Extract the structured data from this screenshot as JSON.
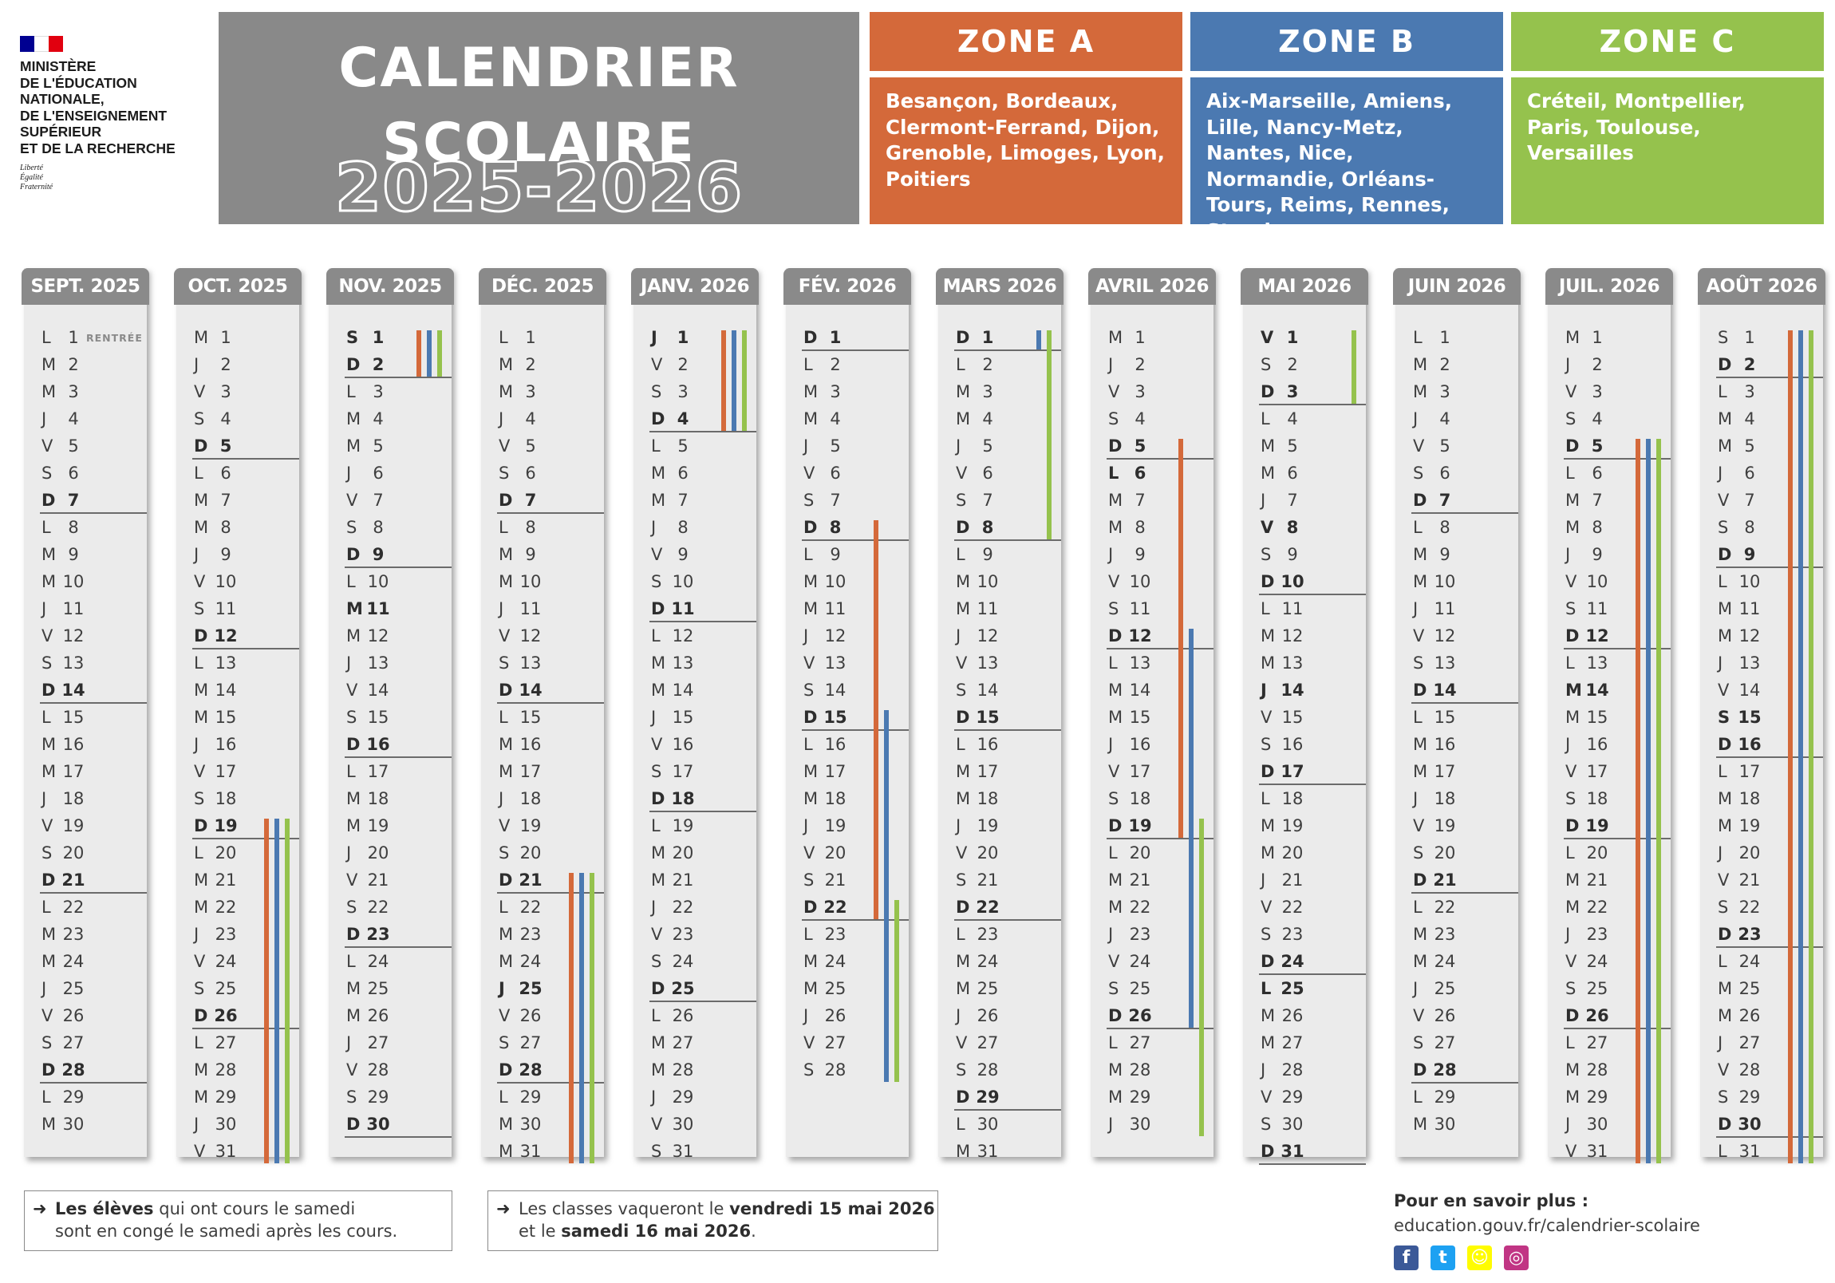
{
  "ministry": {
    "name": "MINISTÈRE\nDE L'ÉDUCATION\nNATIONALE,\nDE L'ENSEIGNEMENT\nSUPÉRIEUR\nET DE LA RECHERCHE",
    "motto": "Liberté\nÉgalité\nFraternité",
    "flag_colors": [
      "#000091",
      "#ffffff",
      "#e1000f"
    ]
  },
  "title": {
    "line": "CALENDRIER\nSCOLAIRE",
    "year": "2025-2026"
  },
  "zones": [
    {
      "name": "ZONE A",
      "color": "#d4693a",
      "cities": "Besançon, Bordeaux, Clermont-Ferrand, Dijon, Grenoble, Limoges, Lyon, Poitiers"
    },
    {
      "name": "ZONE B",
      "color": "#4b79b1",
      "cities": "Aix-Marseille, Amiens, Lille, Nancy-Metz, Nantes, Nice, Normandie, Orléans-Tours, Reims, Rennes, Strasbourg"
    },
    {
      "name": "ZONE C",
      "color": "#95c24d",
      "cities": "Créteil, Montpellier, Paris, Toulouse, Versailles"
    }
  ],
  "months": [
    {
      "name": "SEPT. 2025",
      "start": "L",
      "days": 30,
      "bold": [
        7,
        14,
        21,
        28
      ],
      "notes": {
        "1": "RENTRÉE"
      },
      "vacations": []
    },
    {
      "name": "OCT. 2025",
      "start": "M",
      "days": 31,
      "bold": [
        5,
        12,
        19,
        26
      ],
      "vacations": [
        {
          "zone": "A",
          "from": 19,
          "to": 31
        },
        {
          "zone": "B",
          "from": 19,
          "to": 31
        },
        {
          "zone": "C",
          "from": 19,
          "to": 31
        }
      ]
    },
    {
      "name": "NOV. 2025",
      "start": "S",
      "days": 30,
      "bold": [
        1,
        2,
        9,
        11,
        16,
        23,
        30
      ],
      "vacations": [
        {
          "zone": "A",
          "from": 1,
          "to": 2
        },
        {
          "zone": "B",
          "from": 1,
          "to": 2
        },
        {
          "zone": "C",
          "from": 1,
          "to": 2
        }
      ]
    },
    {
      "name": "DÉC. 2025",
      "start": "L",
      "days": 31,
      "bold": [
        7,
        14,
        21,
        25,
        28
      ],
      "vacations": [
        {
          "zone": "A",
          "from": 21,
          "to": 31
        },
        {
          "zone": "B",
          "from": 21,
          "to": 31
        },
        {
          "zone": "C",
          "from": 21,
          "to": 31
        }
      ]
    },
    {
      "name": "JANV. 2026",
      "start": "J",
      "days": 31,
      "bold": [
        1,
        4,
        11,
        18,
        25
      ],
      "vacations": [
        {
          "zone": "A",
          "from": 1,
          "to": 4
        },
        {
          "zone": "B",
          "from": 1,
          "to": 4
        },
        {
          "zone": "C",
          "from": 1,
          "to": 4
        }
      ]
    },
    {
      "name": "FÉV. 2026",
      "start": "D",
      "days": 28,
      "bold": [
        1,
        8,
        15,
        22
      ],
      "vacations": [
        {
          "zone": "A",
          "from": 8,
          "to": 22
        },
        {
          "zone": "B",
          "from": 15,
          "to": 28
        },
        {
          "zone": "C",
          "from": 22,
          "to": 28
        }
      ]
    },
    {
      "name": "MARS 2026",
      "start": "D",
      "days": 31,
      "bold": [
        1,
        8,
        15,
        22,
        29
      ],
      "vacations": [
        {
          "zone": "B",
          "from": 1,
          "to": 1
        },
        {
          "zone": "C",
          "from": 1,
          "to": 8
        }
      ]
    },
    {
      "name": "AVRIL 2026",
      "start": "M",
      "days": 30,
      "bold": [
        5,
        6,
        12,
        19,
        26
      ],
      "vacations": [
        {
          "zone": "A",
          "from": 5,
          "to": 19
        },
        {
          "zone": "B",
          "from": 12,
          "to": 26
        },
        {
          "zone": "C",
          "from": 19,
          "to": 30
        }
      ]
    },
    {
      "name": "MAI 2026",
      "start": "V",
      "days": 31,
      "bold": [
        1,
        3,
        8,
        10,
        14,
        17,
        24,
        25,
        31
      ],
      "vacations": [
        {
          "zone": "C",
          "from": 1,
          "to": 3
        }
      ]
    },
    {
      "name": "JUIN 2026",
      "start": "L",
      "days": 30,
      "bold": [
        7,
        14,
        21,
        28
      ],
      "vacations": []
    },
    {
      "name": "JUIL. 2026",
      "start": "M",
      "days": 31,
      "bold": [
        5,
        12,
        14,
        19,
        26
      ],
      "vacations": [
        {
          "zone": "A",
          "from": 5,
          "to": 31
        },
        {
          "zone": "B",
          "from": 5,
          "to": 31
        },
        {
          "zone": "C",
          "from": 5,
          "to": 31
        }
      ]
    },
    {
      "name": "AOÛT 2026",
      "start": "S",
      "days": 31,
      "bold": [
        2,
        9,
        15,
        16,
        23,
        30
      ],
      "vacations": [
        {
          "zone": "A",
          "from": 1,
          "to": 31
        },
        {
          "zone": "B",
          "from": 1,
          "to": 31
        },
        {
          "zone": "C",
          "from": 1,
          "to": 31
        }
      ]
    }
  ],
  "weekday_letters": [
    "L",
    "M",
    "M",
    "J",
    "V",
    "S",
    "D"
  ],
  "footer": {
    "note1_bold": "Les élèves",
    "note1_rest": " qui ont cours le samedi",
    "note1_line2": "sont en congé le samedi après les cours.",
    "note2_pre": "Les classes vaqueront le ",
    "note2_bold1": "vendredi 15 mai 2026",
    "note2_mid": "et le ",
    "note2_bold2": "samedi 16 mai 2026",
    "note2_end": ".",
    "arrow": "➜",
    "more_label": "Pour en savoir plus :",
    "more_url": "education.gouv.fr/calendrier-scolaire",
    "social": [
      {
        "name": "facebook-icon",
        "glyph": "f",
        "color": "#3b5998"
      },
      {
        "name": "twitter-icon",
        "glyph": "t",
        "color": "#1da1f2"
      },
      {
        "name": "snapchat-icon",
        "glyph": "☺",
        "color": "#fffc00"
      },
      {
        "name": "instagram-icon",
        "glyph": "◎",
        "color": "#c13584"
      }
    ]
  }
}
